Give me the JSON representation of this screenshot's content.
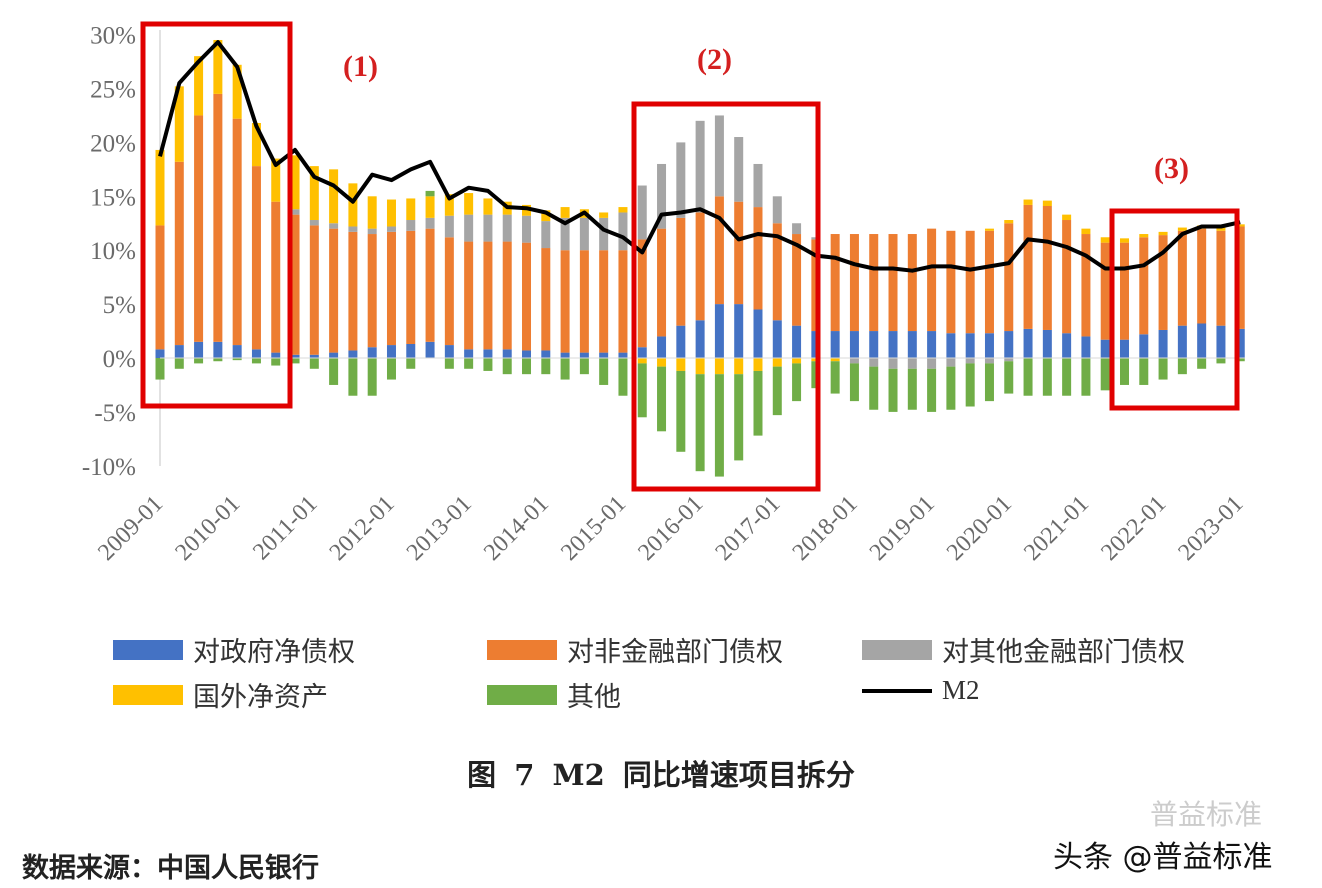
{
  "chart_data": {
    "type": "bar",
    "stacked": true,
    "title": "图 7   M2 同比增速项目拆分",
    "source": "数据来源：中国人民银行",
    "watermark": "头条 @普益标准",
    "watermark_ghost": "普益标准",
    "ylim": [
      -10,
      30
    ],
    "yticks": [
      "30%",
      "25%",
      "20%",
      "15%",
      "10%",
      "5%",
      "0%",
      "-5%",
      "-10%"
    ],
    "ytick_values": [
      30,
      25,
      20,
      15,
      10,
      5,
      0,
      -5,
      -10
    ],
    "xticks": [
      "2009-01",
      "2010-01",
      "2011-01",
      "2012-01",
      "2013-01",
      "2014-01",
      "2015-01",
      "2016-01",
      "2017-01",
      "2018-01",
      "2019-01",
      "2020-01",
      "2021-01",
      "2022-01",
      "2023-01"
    ],
    "x": [
      "2009-01",
      "2009-04",
      "2009-07",
      "2009-10",
      "2010-01",
      "2010-04",
      "2010-07",
      "2010-10",
      "2011-01",
      "2011-04",
      "2011-07",
      "2011-10",
      "2012-01",
      "2012-04",
      "2012-07",
      "2012-10",
      "2013-01",
      "2013-04",
      "2013-07",
      "2013-10",
      "2014-01",
      "2014-04",
      "2014-07",
      "2014-10",
      "2015-01",
      "2015-04",
      "2015-07",
      "2015-10",
      "2016-01",
      "2016-04",
      "2016-07",
      "2016-10",
      "2017-01",
      "2017-04",
      "2017-07",
      "2017-10",
      "2018-01",
      "2018-04",
      "2018-07",
      "2018-10",
      "2019-01",
      "2019-04",
      "2019-07",
      "2019-10",
      "2020-01",
      "2020-04",
      "2020-07",
      "2020-10",
      "2021-01",
      "2021-04",
      "2021-07",
      "2021-10",
      "2022-01",
      "2022-04",
      "2022-07",
      "2022-10",
      "2023-01"
    ],
    "series": [
      {
        "name": "对政府净债权",
        "color": "#4472c4",
        "values": [
          0.8,
          1.2,
          1.5,
          1.5,
          1.2,
          0.8,
          0.5,
          0.3,
          0.3,
          0.5,
          0.7,
          1,
          1.2,
          1.3,
          1.5,
          1.2,
          0.8,
          0.8,
          0.8,
          0.7,
          0.7,
          0.5,
          0.5,
          0.5,
          0.5,
          1,
          2,
          3,
          3.5,
          5,
          5,
          4.5,
          3.5,
          3,
          2.5,
          2.5,
          2.5,
          2.5,
          2.5,
          2.5,
          2.5,
          2.3,
          2.3,
          2.3,
          2.5,
          2.7,
          2.6,
          2.3,
          2,
          1.7,
          1.7,
          2.2,
          2.6,
          3,
          3.2,
          3,
          2.7
        ]
      },
      {
        "name": "对非金融部门债权",
        "color": "#ed7d31",
        "values": [
          11.5,
          17,
          21,
          23,
          21,
          17,
          14,
          13,
          12,
          11.5,
          11,
          10.5,
          10.5,
          10.5,
          10.5,
          10,
          10,
          10,
          10,
          10,
          9.5,
          9.5,
          9.5,
          9.5,
          9.5,
          10,
          10,
          10,
          10,
          10,
          9.5,
          9.5,
          9,
          8.5,
          8.5,
          9,
          9,
          9,
          9,
          9,
          9.5,
          9.5,
          9.5,
          9.5,
          10,
          11.5,
          11.5,
          10.5,
          9.5,
          9,
          9,
          9,
          8.8,
          8.8,
          8.8,
          8.8,
          9.5
        ]
      },
      {
        "name": "对其他金融部门债权",
        "color": "#a5a5a5",
        "values": [
          0,
          0,
          0,
          0,
          0,
          0,
          0,
          0.5,
          0.5,
          0.5,
          0.5,
          0.5,
          0.5,
          1,
          1,
          2,
          2.5,
          2.5,
          2.5,
          2.5,
          2.5,
          3,
          3,
          3,
          3.5,
          5,
          6,
          7,
          8.5,
          7.5,
          6,
          4,
          2.5,
          1,
          0.2,
          0,
          -0.5,
          -0.8,
          -1,
          -1,
          -1,
          -0.8,
          -0.5,
          -0.5,
          -0.3,
          0,
          0,
          0,
          0,
          0,
          0,
          0,
          0,
          0,
          0,
          0,
          0
        ]
      },
      {
        "name": "国外净资产",
        "color": "#ffc000",
        "values": [
          7,
          7,
          5.5,
          5,
          5,
          4,
          4,
          5,
          5,
          5,
          4,
          3,
          2.5,
          2,
          2,
          2,
          2,
          1.5,
          1.2,
          1,
          1,
          1,
          0.8,
          0.5,
          0.5,
          -0.5,
          -0.8,
          -1.2,
          -1.5,
          -1.5,
          -1.5,
          -1.2,
          -0.8,
          -0.5,
          -0.3,
          -0.3,
          0,
          0,
          0,
          0,
          0,
          0,
          0,
          0.2,
          0.3,
          0.5,
          0.5,
          0.5,
          0.5,
          0.5,
          0.4,
          0.3,
          0.3,
          0.3,
          0.3,
          0.3,
          0.2
        ]
      },
      {
        "name": "其他",
        "color": "#70ad47",
        "values": [
          -2,
          -1,
          -0.5,
          -0.3,
          -0.2,
          -0.5,
          -0.7,
          -0.5,
          -1,
          -2.5,
          -3.5,
          -3.5,
          -2,
          -1,
          0.5,
          -1,
          -1,
          -1.2,
          -1.5,
          -1.5,
          -1.5,
          -2,
          -1.5,
          -2.5,
          -3.5,
          -5,
          -6,
          -7.5,
          -9,
          -9.5,
          -8,
          -6,
          -4.5,
          -3.5,
          -2.5,
          -3,
          -3.5,
          -4,
          -4,
          -3.8,
          -4,
          -4,
          -4,
          -3.5,
          -3,
          -3.5,
          -3.5,
          -3.5,
          -3.5,
          -3,
          -2.5,
          -2.5,
          -2,
          -1.5,
          -1,
          -0.5,
          -0.3
        ]
      }
    ],
    "line": {
      "name": "M2",
      "color": "#000000",
      "values": [
        18.7,
        25.5,
        27.5,
        29.3,
        27,
        21.5,
        17.9,
        19.3,
        16.8,
        16,
        14.5,
        17,
        16.5,
        17.5,
        18.2,
        14.8,
        15.8,
        15.5,
        14,
        13.9,
        13.5,
        12.5,
        13.5,
        11.9,
        11.2,
        9.8,
        13.3,
        13.5,
        13.8,
        13,
        11,
        11.5,
        11.3,
        10.5,
        9.5,
        9.3,
        8.7,
        8.3,
        8.3,
        8.1,
        8.5,
        8.5,
        8.2,
        8.5,
        8.8,
        11,
        10.8,
        10.3,
        9.5,
        8.3,
        8.3,
        8.6,
        9.8,
        11.5,
        12.2,
        12.2,
        12.6
      ]
    },
    "legend_position": "bottom",
    "grid": false,
    "annotations": [
      {
        "label": "(1)",
        "color": "#e00000",
        "range": [
          "2009-01",
          "2010-12"
        ]
      },
      {
        "label": "(2)",
        "color": "#e00000",
        "range": [
          "2015-04",
          "2017-12"
        ]
      },
      {
        "label": "(3)",
        "color": "#e00000",
        "range": [
          "2021-09",
          "2023-01"
        ]
      }
    ]
  }
}
